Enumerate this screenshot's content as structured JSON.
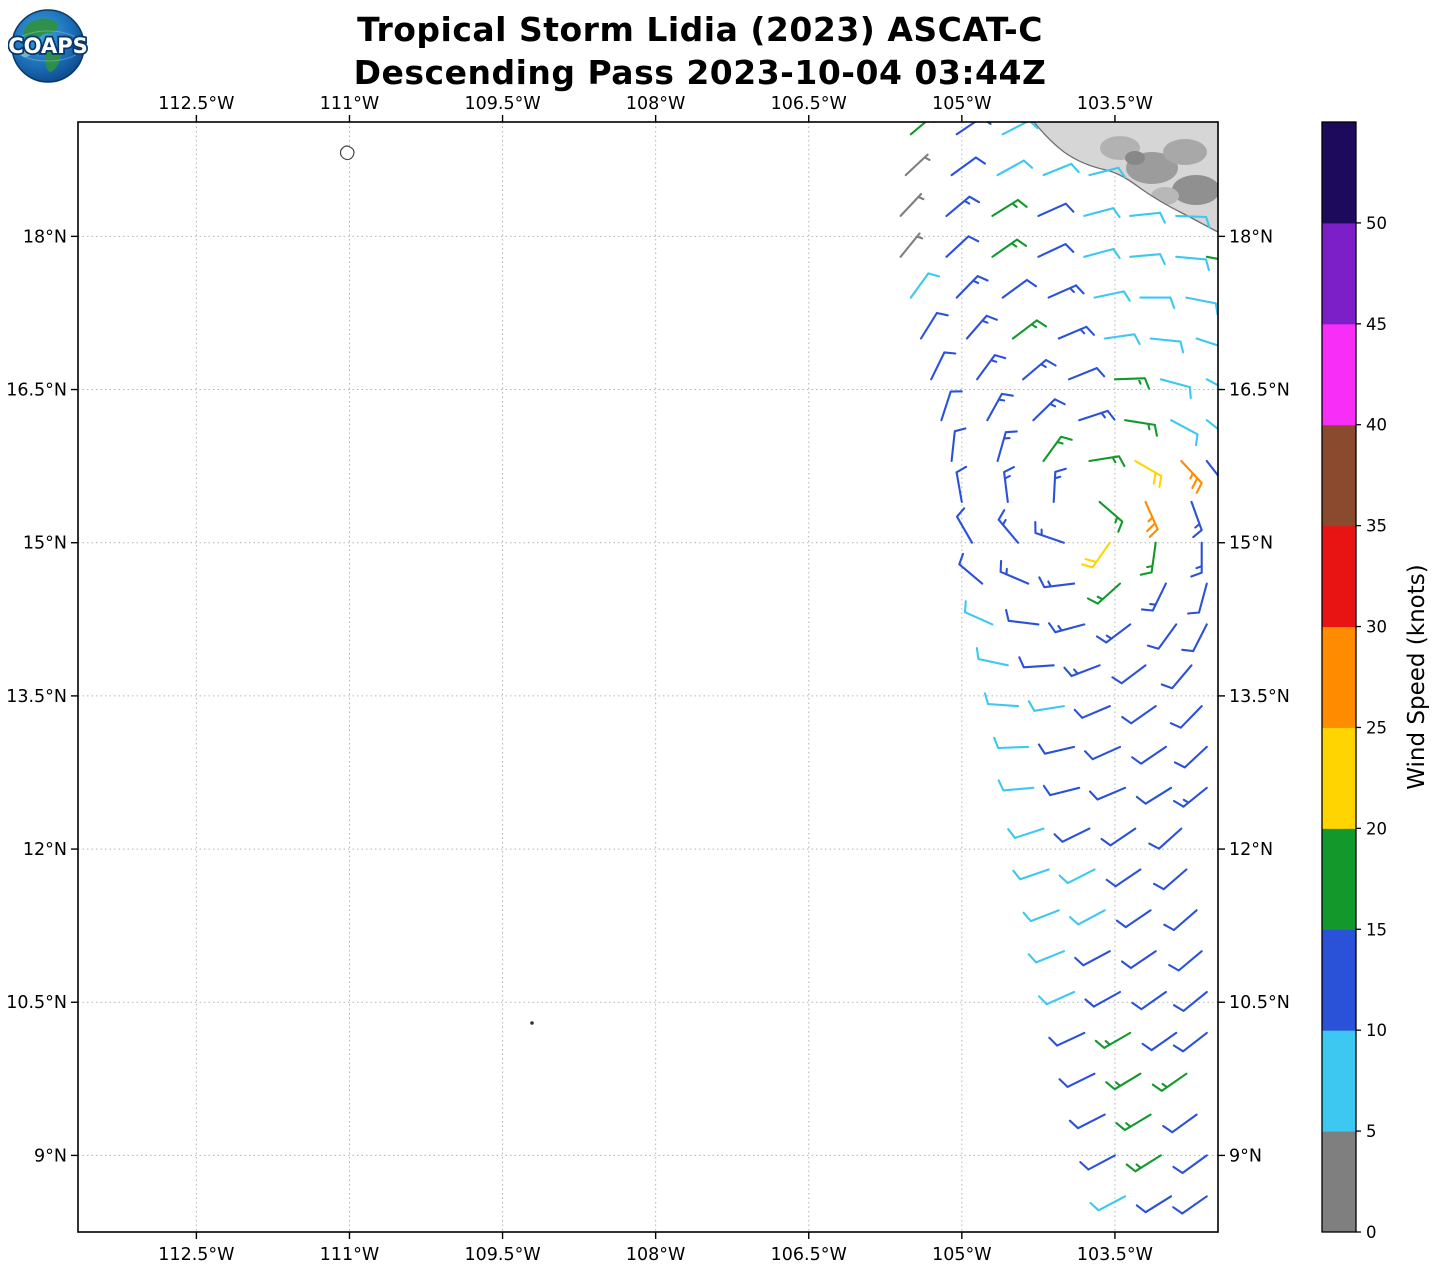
{
  "header": {
    "title_line1": "Tropical Storm Lidia (2023) ASCAT-C",
    "title_line2": "Descending Pass 2023-10-04 03:44Z"
  },
  "logo": {
    "text": "COAPS"
  },
  "axes": {
    "lon_min": -113.66,
    "lon_max": -102.49,
    "lat_min": 8.25,
    "lat_max": 19.12,
    "x_ticks": [
      {
        "label": "112.5°W",
        "lon": -112.5
      },
      {
        "label": "111°W",
        "lon": -111.0
      },
      {
        "label": "109.5°W",
        "lon": -109.5
      },
      {
        "label": "108°W",
        "lon": -108.0
      },
      {
        "label": "106.5°W",
        "lon": -106.5
      },
      {
        "label": "105°W",
        "lon": -105.0
      },
      {
        "label": "103.5°W",
        "lon": -103.5
      }
    ],
    "y_ticks": [
      {
        "label": "18°N",
        "lat": 18.0
      },
      {
        "label": "16.5°N",
        "lat": 16.5
      },
      {
        "label": "15°N",
        "lat": 15.0
      },
      {
        "label": "13.5°N",
        "lat": 13.5
      },
      {
        "label": "12°N",
        "lat": 12.0
      },
      {
        "label": "10.5°N",
        "lat": 10.5
      },
      {
        "label": "9°N",
        "lat": 9.0
      }
    ]
  },
  "colorbar": {
    "label": "Wind Speed (knots)",
    "tick_values": [
      0,
      5,
      10,
      15,
      20,
      25,
      30,
      35,
      40,
      45,
      50
    ],
    "segments": [
      {
        "min": 0,
        "max": 5,
        "color": "#7f7f7f"
      },
      {
        "min": 5,
        "max": 10,
        "color": "#3cc8f0"
      },
      {
        "min": 10,
        "max": 15,
        "color": "#2a52d8"
      },
      {
        "min": 15,
        "max": 20,
        "color": "#13992b"
      },
      {
        "min": 20,
        "max": 25,
        "color": "#ffd400"
      },
      {
        "min": 25,
        "max": 30,
        "color": "#ff8b00"
      },
      {
        "min": 30,
        "max": 35,
        "color": "#e81414"
      },
      {
        "min": 35,
        "max": 40,
        "color": "#8a4a2d"
      },
      {
        "min": 40,
        "max": 45,
        "color": "#f82df8"
      },
      {
        "min": 45,
        "max": 50,
        "color": "#7c1fc8"
      },
      {
        "min": 50,
        "max": 55,
        "color": "#1e0a5c"
      }
    ]
  },
  "chart_data": {
    "type": "wind_barb_map",
    "title": "Tropical Storm Lidia (2023) ASCAT-C Descending Pass 2023-10-04 03:44Z",
    "satellite": "ASCAT-C",
    "pass_type": "Descending",
    "valid_time": "2023-10-04 03:44Z",
    "units": "knots",
    "lon_range": [
      -113.66,
      -102.49
    ],
    "lat_range": [
      8.25,
      19.12
    ],
    "barb_format": [
      "lat",
      "lon",
      "wind_from_deg",
      "speed_kt"
    ],
    "barbs": [
      [
        19,
        -105.5,
        50,
        16
      ],
      [
        19,
        -105.05,
        56,
        12
      ],
      [
        19,
        -104.6,
        63,
        8
      ],
      [
        18.6,
        -105.55,
        47,
        3
      ],
      [
        18.6,
        -105.1,
        54,
        12
      ],
      [
        18.6,
        -104.65,
        61,
        9
      ],
      [
        18.6,
        -104.2,
        68,
        8
      ],
      [
        18.6,
        -103.75,
        76,
        8
      ],
      [
        18.2,
        -105.6,
        43,
        4
      ],
      [
        18.2,
        -105.15,
        50,
        13
      ],
      [
        18.2,
        -104.7,
        58,
        16
      ],
      [
        18.2,
        -104.25,
        66,
        12
      ],
      [
        18.2,
        -103.8,
        75,
        8
      ],
      [
        18.2,
        -103.35,
        84,
        8
      ],
      [
        18.2,
        -102.9,
        92,
        9
      ],
      [
        17.8,
        -105.6,
        39,
        4
      ],
      [
        17.8,
        -105.15,
        47,
        12
      ],
      [
        17.8,
        -104.7,
        55,
        16
      ],
      [
        17.8,
        -104.25,
        65,
        12
      ],
      [
        17.8,
        -103.8,
        75,
        9
      ],
      [
        17.8,
        -103.35,
        85,
        8
      ],
      [
        17.8,
        -102.9,
        95,
        8
      ],
      [
        17.8,
        -102.6,
        101,
        16
      ],
      [
        17.4,
        -105.5,
        36,
        9
      ],
      [
        17.4,
        -105.05,
        44,
        13
      ],
      [
        17.4,
        -104.6,
        54,
        12
      ],
      [
        17.4,
        -104.15,
        66,
        13
      ],
      [
        17.4,
        -103.7,
        78,
        9
      ],
      [
        17.4,
        -103.25,
        90,
        8
      ],
      [
        17.4,
        -102.8,
        101,
        8
      ],
      [
        17,
        -105.4,
        32,
        12
      ],
      [
        17,
        -104.95,
        41,
        13
      ],
      [
        17,
        -104.5,
        53,
        16
      ],
      [
        17,
        -104.05,
        67,
        13
      ],
      [
        17,
        -103.6,
        82,
        8
      ],
      [
        17,
        -103.15,
        96,
        8
      ],
      [
        17,
        -102.7,
        108,
        8
      ],
      [
        16.6,
        -105.3,
        26,
        12
      ],
      [
        16.6,
        -104.85,
        36,
        13
      ],
      [
        16.6,
        -104.4,
        50,
        13
      ],
      [
        16.6,
        -103.95,
        68,
        12
      ],
      [
        16.6,
        -103.5,
        88,
        16
      ],
      [
        16.6,
        -103.05,
        105,
        8
      ],
      [
        16.6,
        -102.6,
        118,
        8
      ],
      [
        16.2,
        -105.2,
        18,
        12
      ],
      [
        16.2,
        -104.75,
        29,
        13
      ],
      [
        16.2,
        -104.3,
        46,
        14
      ],
      [
        16.2,
        -103.85,
        72,
        13
      ],
      [
        16.2,
        -103.4,
        99,
        17
      ],
      [
        16.2,
        -102.95,
        118,
        9
      ],
      [
        16.2,
        -102.6,
        128,
        8
      ],
      [
        15.8,
        -105.1,
        6,
        12
      ],
      [
        15.8,
        -104.65,
        16,
        13
      ],
      [
        15.8,
        -104.2,
        36,
        15
      ],
      [
        15.8,
        -103.75,
        81,
        17
      ],
      [
        15.8,
        -103.3,
        120,
        21
      ],
      [
        15.8,
        -102.85,
        137,
        26
      ],
      [
        15.8,
        -102.6,
        142,
        12
      ],
      [
        15.4,
        -105,
        350,
        12
      ],
      [
        15.4,
        -104.55,
        353,
        13
      ],
      [
        15.4,
        -104.1,
        3,
        14
      ],
      [
        15.4,
        -103.65,
        131,
        17
      ],
      [
        15.4,
        -103.2,
        156,
        25
      ],
      [
        15.4,
        -102.75,
        160,
        13
      ],
      [
        15,
        -104.9,
        330,
        12
      ],
      [
        15,
        -104.45,
        320,
        13
      ],
      [
        15,
        -104,
        289,
        14
      ],
      [
        15,
        -103.55,
        215,
        22
      ],
      [
        15,
        -103.1,
        188,
        17
      ],
      [
        15,
        -102.65,
        180,
        13
      ],
      [
        14.6,
        -104.8,
        310,
        12
      ],
      [
        14.6,
        -104.35,
        293,
        13
      ],
      [
        14.6,
        -103.9,
        263,
        14
      ],
      [
        14.6,
        -103.45,
        228,
        16
      ],
      [
        14.6,
        -103,
        206,
        13
      ],
      [
        14.6,
        -102.6,
        195,
        12
      ],
      [
        14.2,
        -104.7,
        294,
        9
      ],
      [
        14.2,
        -104.25,
        277,
        12
      ],
      [
        14.2,
        -103.8,
        255,
        13
      ],
      [
        14.2,
        -103.35,
        233,
        13
      ],
      [
        14.2,
        -102.9,
        216,
        12
      ],
      [
        14.2,
        -102.6,
        207,
        12
      ],
      [
        13.8,
        -104.55,
        282,
        8
      ],
      [
        13.8,
        -104.1,
        266,
        12
      ],
      [
        13.8,
        -103.65,
        249,
        13
      ],
      [
        13.8,
        -103.2,
        233,
        12
      ],
      [
        13.8,
        -102.75,
        220,
        12
      ],
      [
        13.4,
        -104.45,
        274,
        8
      ],
      [
        13.4,
        -104,
        261,
        9
      ],
      [
        13.4,
        -103.55,
        247,
        12
      ],
      [
        13.4,
        -103.1,
        235,
        12
      ],
      [
        13.4,
        -102.65,
        224,
        12
      ],
      [
        13,
        -104.35,
        268,
        8
      ],
      [
        13,
        -103.9,
        257,
        12
      ],
      [
        13,
        -103.45,
        246,
        12
      ],
      [
        13,
        -103,
        236,
        12
      ],
      [
        13,
        -102.6,
        227,
        12
      ],
      [
        12.6,
        -104.3,
        265,
        9
      ],
      [
        12.6,
        -103.85,
        256,
        12
      ],
      [
        12.6,
        -103.4,
        247,
        12
      ],
      [
        12.6,
        -102.95,
        238,
        12
      ],
      [
        12.6,
        -102.6,
        231,
        13
      ],
      [
        12.2,
        -104.2,
        252,
        8
      ],
      [
        12.2,
        -103.75,
        244,
        12
      ],
      [
        12.2,
        -103.3,
        236,
        12
      ],
      [
        12.2,
        -102.85,
        228,
        12
      ],
      [
        11.8,
        -104.15,
        251,
        8
      ],
      [
        11.8,
        -103.7,
        243,
        9
      ],
      [
        11.8,
        -103.25,
        236,
        12
      ],
      [
        11.8,
        -102.8,
        229,
        12
      ],
      [
        11.4,
        -104.05,
        249,
        8
      ],
      [
        11.4,
        -103.6,
        242,
        9
      ],
      [
        11.4,
        -103.15,
        236,
        12
      ],
      [
        11.4,
        -102.7,
        229,
        12
      ],
      [
        11,
        -104,
        248,
        8
      ],
      [
        11,
        -103.55,
        242,
        12
      ],
      [
        11,
        -103.1,
        236,
        12
      ],
      [
        11,
        -102.65,
        230,
        12
      ],
      [
        10.6,
        -103.9,
        246,
        9
      ],
      [
        10.6,
        -103.45,
        241,
        12
      ],
      [
        10.6,
        -103,
        235,
        12
      ],
      [
        10.6,
        -102.6,
        231,
        12
      ],
      [
        10.2,
        -103.8,
        245,
        12
      ],
      [
        10.2,
        -103.35,
        240,
        16
      ],
      [
        10.2,
        -102.9,
        235,
        12
      ],
      [
        10.2,
        -102.6,
        232,
        12
      ],
      [
        9.8,
        -103.7,
        244,
        12
      ],
      [
        9.8,
        -103.25,
        239,
        17
      ],
      [
        9.8,
        -102.8,
        235,
        16
      ],
      [
        9.4,
        -103.6,
        243,
        12
      ],
      [
        9.4,
        -103.15,
        239,
        17
      ],
      [
        9.4,
        -102.7,
        234,
        12
      ],
      [
        9,
        -103.5,
        242,
        12
      ],
      [
        9,
        -103.05,
        238,
        16
      ],
      [
        9,
        -102.6,
        234,
        12
      ],
      [
        8.6,
        -103.4,
        242,
        9
      ],
      [
        8.6,
        -102.95,
        238,
        12
      ],
      [
        8.6,
        -102.6,
        235,
        12
      ]
    ]
  }
}
